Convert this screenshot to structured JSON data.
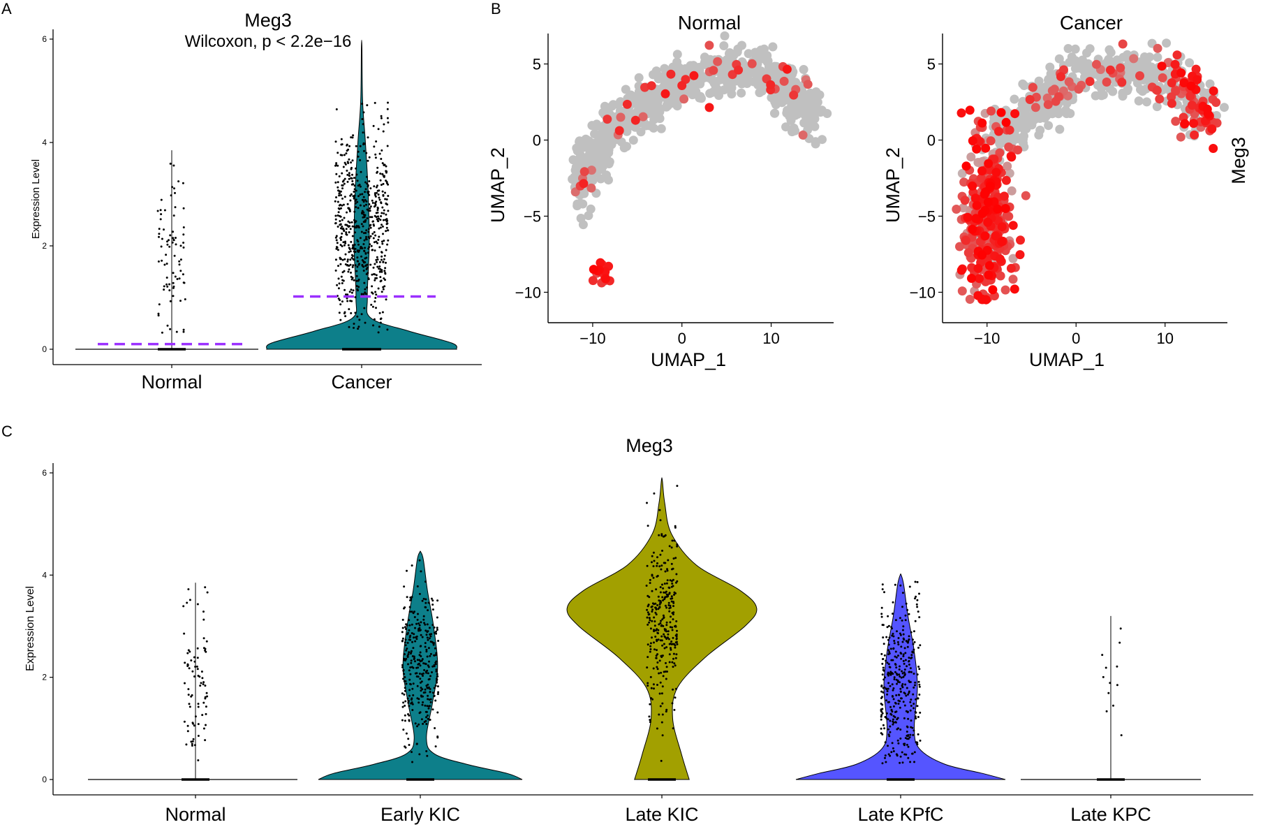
{
  "figure": {
    "panel_labels": [
      "A",
      "B",
      "C"
    ]
  },
  "chart_data": [
    {
      "id": "A",
      "type": "violin",
      "title": "Meg3",
      "subtitle": "Wilcoxon, p < 2.2e−16",
      "xlabel": "",
      "ylabel": "Expression Level",
      "ylim": [
        0,
        6
      ],
      "yticks": [
        "0",
        "2",
        "4",
        "6"
      ],
      "categories": [
        "Normal",
        "Cancer"
      ],
      "fill_colors": [
        "#ffffff",
        "#0d7f8a"
      ],
      "medians_dashed": [
        0.1,
        1.02
      ],
      "median_line_color": "#9b30ff",
      "max_values": [
        3.85,
        5.85
      ],
      "violin_profiles": [
        [
          [
            0,
            1.0
          ],
          [
            0.05,
            0.02
          ],
          [
            3.85,
            0.005
          ]
        ],
        [
          [
            0,
            1.0
          ],
          [
            0.12,
            0.95
          ],
          [
            0.35,
            0.5
          ],
          [
            0.6,
            0.1
          ],
          [
            1.0,
            0.06
          ],
          [
            2.0,
            0.08
          ],
          [
            3.0,
            0.07
          ],
          [
            4.0,
            0.04
          ],
          [
            4.8,
            0.01
          ],
          [
            5.85,
            0.003
          ]
        ]
      ]
    },
    {
      "id": "B-normal",
      "type": "scatter",
      "title": "Normal",
      "xlabel": "UMAP_1",
      "ylabel": "UMAP_2",
      "xlim": [
        -15,
        17
      ],
      "ylim": [
        -12,
        7
      ],
      "xticks": [
        "−10",
        "0",
        "10"
      ],
      "yticks": [
        "−10",
        "−5",
        "0",
        "5"
      ],
      "color_low": "#c0c0c0",
      "color_high": "#ff0000"
    },
    {
      "id": "B-cancer",
      "type": "scatter",
      "title": "Cancer",
      "xlabel": "UMAP_1",
      "ylabel": "UMAP_2",
      "xlim": [
        -15,
        17
      ],
      "ylim": [
        -12,
        7
      ],
      "xticks": [
        "−10",
        "0",
        "10"
      ],
      "yticks": [
        "−10",
        "−5",
        "0",
        "5"
      ],
      "color_low": "#c0c0c0",
      "color_high": "#ff0000",
      "legend_title": "Meg3"
    },
    {
      "id": "C",
      "type": "violin",
      "title": "Meg3",
      "ylabel": "Expression Level",
      "ylim": [
        0,
        6
      ],
      "yticks": [
        "0",
        "2",
        "4",
        "6"
      ],
      "categories": [
        "Normal",
        "Early KIC",
        "Late KIC",
        "Late KPfC",
        "Late KPC"
      ],
      "fill_colors": [
        "#ffffff",
        "#0d7f8a",
        "#a2a000",
        "#5555ff",
        "#ffffff"
      ],
      "max_values": [
        3.85,
        4.45,
        5.85,
        4.0,
        3.2
      ]
    }
  ]
}
